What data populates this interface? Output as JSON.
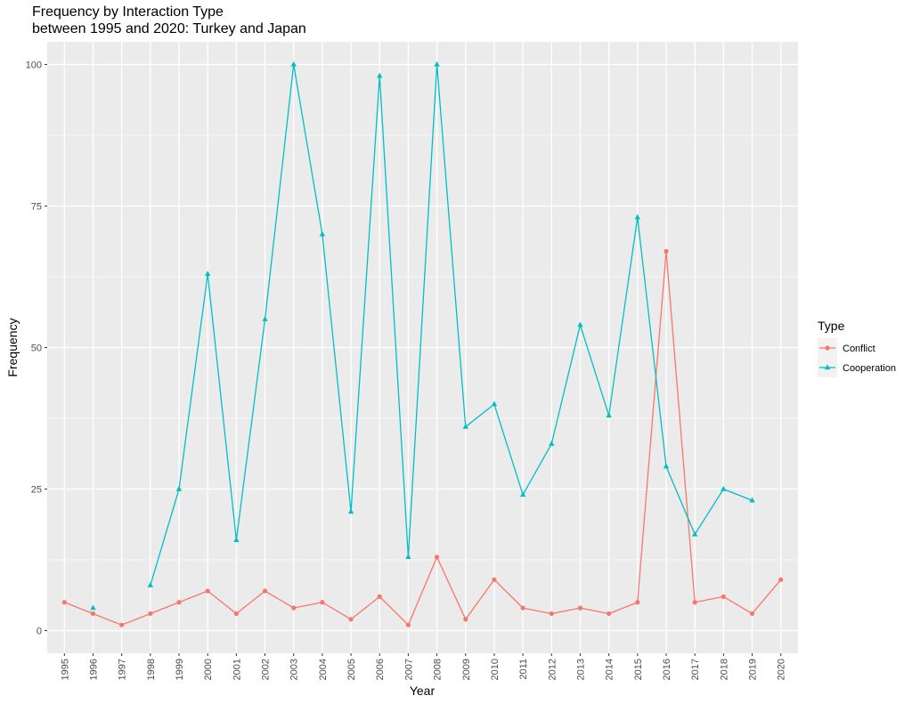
{
  "chart_data": {
    "type": "line",
    "title": "Frequency by Interaction Type\nbetween 1995 and 2020: Turkey and Japan",
    "xlabel": "Year",
    "ylabel": "Frequency",
    "ylim": [
      -4,
      104
    ],
    "yticks": [
      0,
      25,
      50,
      75,
      100
    ],
    "grid": true,
    "legend_position": "right",
    "legend_title": "Type",
    "categories": [
      "1995",
      "1996",
      "1997",
      "1998",
      "1999",
      "2000",
      "2001",
      "2002",
      "2003",
      "2004",
      "2005",
      "2006",
      "2007",
      "2008",
      "2009",
      "2010",
      "2011",
      "2012",
      "2013",
      "2014",
      "2015",
      "2016",
      "2017",
      "2018",
      "2019",
      "2020"
    ],
    "series": [
      {
        "name": "Conflict",
        "color": "#F8766D",
        "marker": "circle",
        "values": [
          5,
          3,
          1,
          3,
          5,
          7,
          3,
          7,
          4,
          5,
          2,
          6,
          1,
          13,
          2,
          9,
          4,
          3,
          4,
          3,
          5,
          67,
          5,
          6,
          3,
          9
        ]
      },
      {
        "name": "Cooperation",
        "color": "#00BFC4",
        "marker": "triangle",
        "values": [
          null,
          4,
          null,
          8,
          25,
          63,
          16,
          55,
          100,
          70,
          21,
          98,
          13,
          100,
          36,
          40,
          24,
          33,
          54,
          38,
          73,
          29,
          17,
          25,
          23,
          null
        ]
      }
    ]
  }
}
